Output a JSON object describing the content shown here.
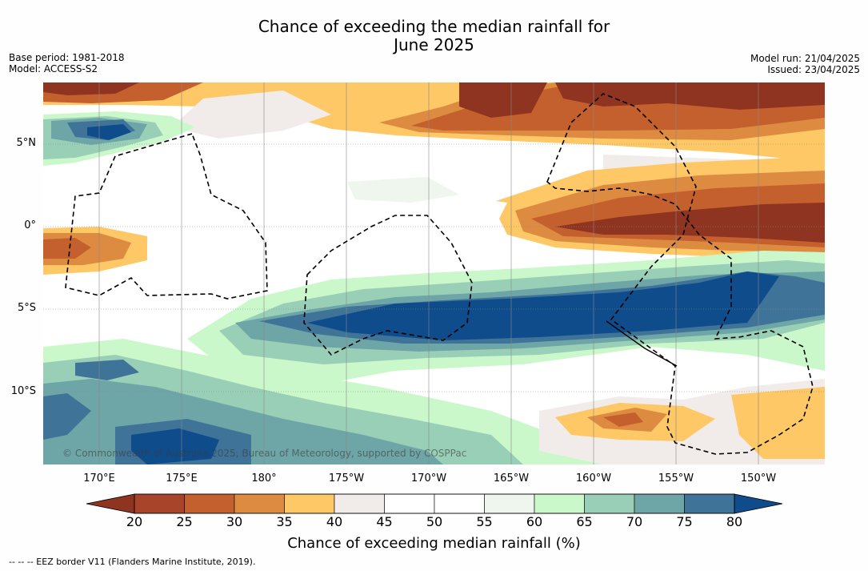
{
  "title_line1": "Chance of exceeding the median rainfall for",
  "title_line2": "June 2025",
  "base_period": "Base period: 1981-2018",
  "model": "Model: ACCESS-S2",
  "model_run": "Model run: 21/04/2025",
  "issued": "Issued: 23/04/2025",
  "copyright": "© Commonwealth of Australia 2025, Bureau of Meteorology, supported by COSPPac",
  "footer": "--  --  -- EEZ border V11 (Flanders Marine Institute, 2019).",
  "longitude_labels": [
    "170°E",
    "175°E",
    "180°",
    "175°W",
    "170°W",
    "165°W",
    "160°W",
    "155°W",
    "150°W"
  ],
  "latitude_labels": [
    "5°N",
    "0°",
    "5°S",
    "10°S"
  ],
  "colorbar": {
    "title": "Chance of exceeding median rainfall (%)",
    "labels": [
      "20",
      "25",
      "30",
      "35",
      "40",
      "45",
      "50",
      "55",
      "60",
      "65",
      "70",
      "75",
      "80"
    ],
    "low_color": "#8f3420",
    "high_color": "#0f4c8b",
    "colors": [
      "#a84429",
      "#c4602d",
      "#de8b42",
      "#fdc865",
      "#f1ece9",
      "#ffffff",
      "#ffffff",
      "#eff6ed",
      "#cbf8cb",
      "#9acfb7",
      "#6ea5a7",
      "#3f7398"
    ]
  },
  "legend_item": "EEZ border"
}
